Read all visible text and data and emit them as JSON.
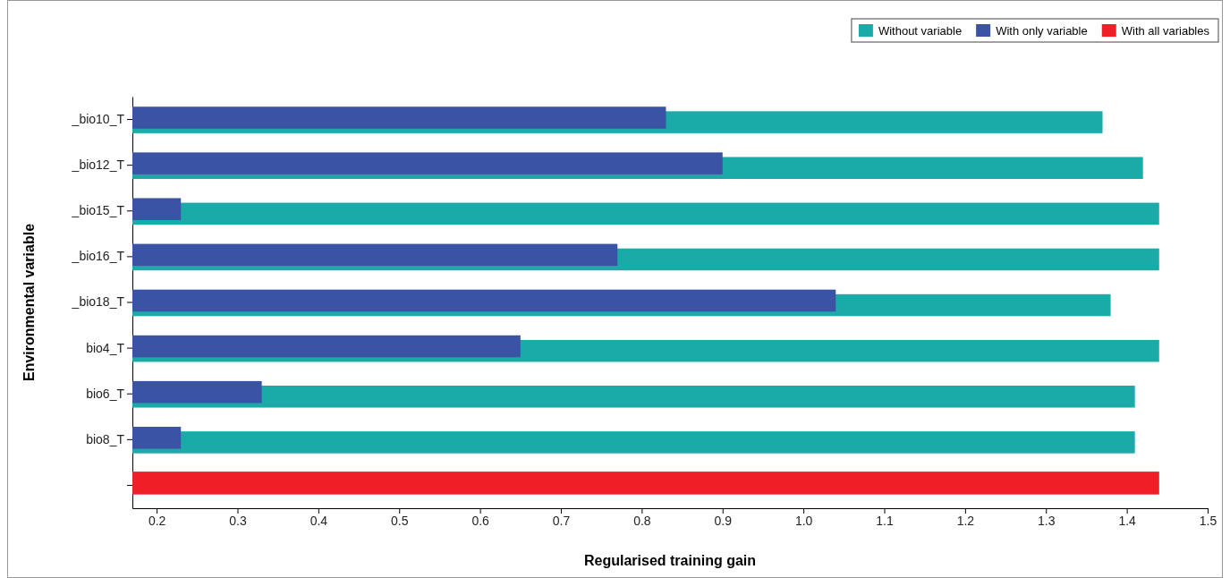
{
  "chart_data": {
    "type": "bar",
    "orientation": "horizontal",
    "xlabel": "Regularised training gain",
    "ylabel": "Environmental variable",
    "categories": [
      "_bio10_T",
      "_bio12_T",
      "_bio15_T",
      "_bio16_T",
      "_bio18_T",
      "bio4_T",
      "bio6_T",
      "bio8_T",
      null
    ],
    "series": [
      {
        "name": "Without variable",
        "color": "#1aaba9",
        "values": [
          1.37,
          1.42,
          1.44,
          1.44,
          1.38,
          1.44,
          1.41,
          1.41,
          null
        ]
      },
      {
        "name": "With only variable",
        "color": "#3a53a4",
        "values": [
          0.83,
          0.9,
          0.23,
          0.77,
          1.04,
          0.65,
          0.33,
          0.23,
          null
        ]
      },
      {
        "name": "With all variables",
        "color": "#ee2026",
        "values": [
          null,
          null,
          null,
          null,
          null,
          null,
          null,
          null,
          1.44
        ]
      }
    ],
    "xlim": [
      0.17,
      1.5
    ],
    "xticks": [
      0.2,
      0.3,
      0.4,
      0.5,
      0.6,
      0.7,
      0.8,
      0.9,
      {
        "value": 1,
        "label": "1.0"
      },
      1.1,
      1.2,
      1.3,
      1.4,
      1.5
    ],
    "grid": false,
    "legend": "top right"
  }
}
